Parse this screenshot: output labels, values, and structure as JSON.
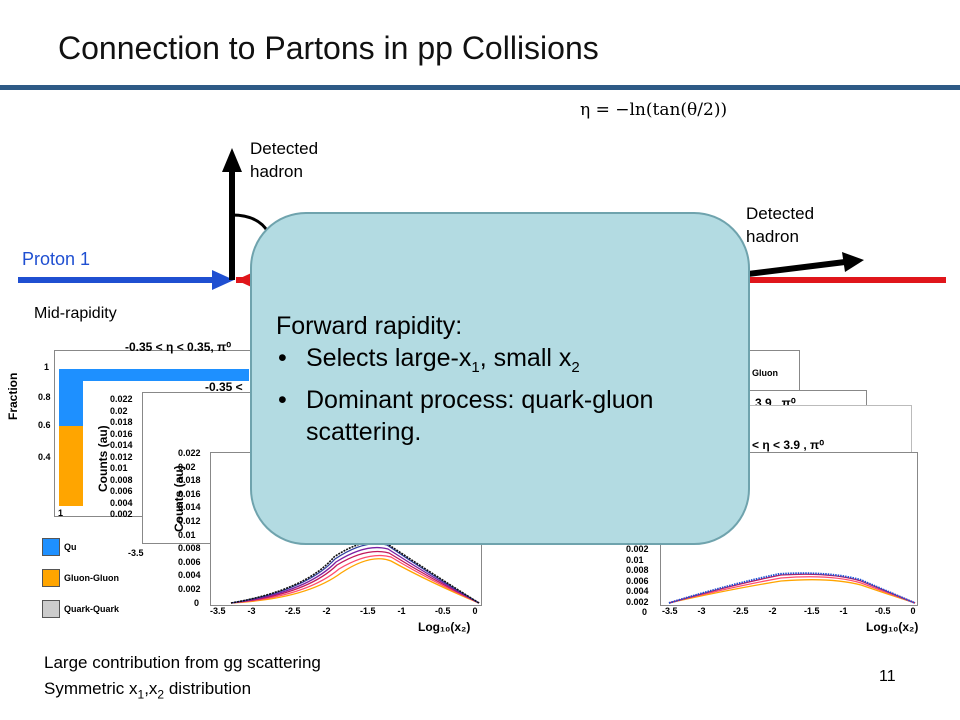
{
  "slide": {
    "title": "Connection to Partons in pp Collisions",
    "page_number": "11"
  },
  "labels": {
    "detected_hadron_left": [
      "Detected",
      "hadron"
    ],
    "detected_hadron_right": [
      "Detected",
      "hadron"
    ],
    "proton1": "Proton 1",
    "mid_rapidity": "Mid-rapidity",
    "formula": "η = −ln(tan(θ/2))"
  },
  "callout": {
    "heading": "Forward rapidity:",
    "bullet1": {
      "pre": "Selects large-x",
      "sub1": "1",
      "mid": ", small x",
      "sub2": "2"
    },
    "bullet2": "Dominant process: quark-gluon scattering."
  },
  "bottom_text": {
    "line1": "Large contribution from gg scattering",
    "line2": {
      "pre": "Symmetric x",
      "sub1": "1",
      "mid": ",x",
      "sub2": "2",
      "post": " distribution"
    }
  },
  "plots": {
    "mid_title": "-0.35 < η < 0.35, π⁰",
    "mid_title2": "-0.35 <",
    "forward_title": "< η < 3.9 , π⁰",
    "forward_title2": "3.9 , π⁰",
    "fraction_label": "Fraction",
    "counts_label": "Counts (au)",
    "x_label": "Log₁₀(x₂)",
    "fraction_ticks": [
      "1",
      "0.8",
      "0.6",
      "0.4"
    ],
    "counts_ticks_back": [
      "0.022",
      "0.02",
      "0.018",
      "0.016",
      "0.014",
      "0.012",
      "0.01",
      "0.008",
      "0.006",
      "0.004",
      "0.002"
    ],
    "counts_ticks_front": [
      "0.022",
      "0.02",
      "0.018",
      "0.016",
      "0.014",
      "0.012",
      "0.01",
      "0.008",
      "0.006",
      "0.004",
      "0.002",
      "0"
    ],
    "x_ticks": [
      "-3.5",
      "-3",
      "-2.5",
      "-2",
      "-1.5",
      "-1",
      "-0.5",
      "0"
    ],
    "right_counts_ticks": [
      "0.002",
      "0.01",
      "0.008",
      "0.006",
      "0.004",
      "0.002",
      "0"
    ],
    "legend": [
      {
        "label": "Qu",
        "color": "#1e90ff"
      },
      {
        "label": "Gluon-Gluon",
        "color": "#ffa500"
      },
      {
        "label": "Quark-Quark",
        "color": "#cccccc"
      }
    ],
    "right_legend_gluon": "Gluon",
    "back_x_start": "-3.5",
    "fraction_axis_one": "1"
  },
  "colors": {
    "title_rule": "#2e5a86",
    "proton1": "#1f4fd1",
    "proton2": "#e0161b",
    "callout_bg": "#b3dbe2"
  }
}
